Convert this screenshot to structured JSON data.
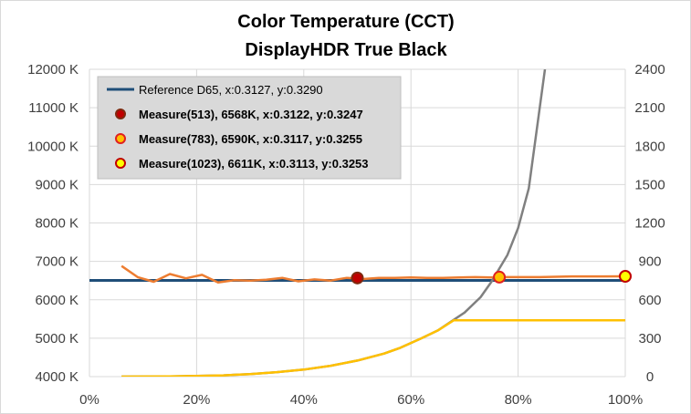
{
  "chart_data": {
    "type": "line",
    "title": "Color Temperature (CCT)",
    "subtitle": "DisplayHDR True Black",
    "xlabel": "",
    "ylabel": "",
    "x_ticks": [
      "0%",
      "20%",
      "40%",
      "60%",
      "80%",
      "100%"
    ],
    "xlim": [
      0,
      100
    ],
    "y_left_ticks": [
      "4000 K",
      "5000 K",
      "6000 K",
      "7000 K",
      "8000 K",
      "9000 K",
      "10000 K",
      "11000 K",
      "12000 K"
    ],
    "ylim_left": [
      4000,
      12000
    ],
    "y_right_ticks": [
      "0",
      "300",
      "600",
      "900",
      "1200",
      "1500",
      "1800",
      "2100",
      "2400"
    ],
    "ylim_right": [
      0,
      2400
    ],
    "grid": true,
    "legend_position": "top-left",
    "legend": [
      {
        "label": "Reference D65, x:0.3127, y:0.3290",
        "marker": "line",
        "color": "#1f4e79",
        "bold": false
      },
      {
        "label": "Measure(513), 6568K, x:0.3122, y:0.3247",
        "marker": "circle",
        "fill": "#c00000",
        "stroke": "#7f2a10",
        "bold": true
      },
      {
        "label": "Measure(783), 6590K, x:0.3117, y:0.3255",
        "marker": "circle",
        "fill": "#ffc000",
        "stroke": "#e02020",
        "bold": true
      },
      {
        "label": "Measure(1023), 6611K, x:0.3113, y:0.3253",
        "marker": "circle",
        "fill": "#ffff00",
        "stroke": "#c00000",
        "bold": true
      }
    ],
    "series": [
      {
        "name": "Reference D65, x:0.3127, y:0.3290",
        "axis": "left",
        "color": "#1f4e79",
        "x": [
          0,
          100
        ],
        "y": [
          6504,
          6504
        ]
      },
      {
        "axis": "left",
        "color": "#ed7d31",
        "x": [
          6,
          9,
          12,
          15,
          18,
          21,
          24,
          27,
          30,
          33,
          36,
          39,
          42,
          45,
          48,
          51,
          54,
          57,
          60,
          63,
          66,
          69,
          72,
          75,
          78,
          81,
          84,
          87,
          90,
          93,
          96,
          100
        ],
        "y": [
          6880,
          6590,
          6470,
          6670,
          6560,
          6650,
          6450,
          6510,
          6500,
          6520,
          6570,
          6480,
          6530,
          6500,
          6570,
          6540,
          6570,
          6570,
          6580,
          6570,
          6570,
          6580,
          6590,
          6580,
          6590,
          6590,
          6590,
          6600,
          6610,
          6610,
          6610,
          6611
        ]
      },
      {
        "axis": "right",
        "color": "#808080",
        "x": [
          6,
          10,
          15,
          20,
          25,
          30,
          35,
          40,
          45,
          50,
          55,
          58,
          62,
          65,
          70,
          73,
          75,
          78,
          80,
          82,
          85
        ],
        "y": [
          0,
          0.5,
          1.5,
          5,
          10,
          20,
          35,
          55,
          85,
          125,
          180,
          225,
          300,
          360,
          500,
          620,
          740,
          950,
          1160,
          1470,
          2400
        ]
      },
      {
        "axis": "right",
        "color": "#ffc000",
        "x": [
          6,
          10,
          15,
          20,
          25,
          30,
          35,
          40,
          45,
          50,
          55,
          58,
          62,
          65,
          68,
          70,
          75,
          80,
          85,
          90,
          95,
          100
        ],
        "y": [
          0,
          0.5,
          1.5,
          5,
          10,
          20,
          35,
          55,
          85,
          125,
          180,
          225,
          300,
          360,
          440,
          440,
          440,
          440,
          440,
          440,
          440,
          440
        ]
      },
      {
        "name": "Measure(513), 6568K, x:0.3122, y:0.3247",
        "axis": "left",
        "type": "point",
        "fill": "#c00000",
        "stroke": "#7f2a10",
        "x": [
          50
        ],
        "y": [
          6568
        ]
      },
      {
        "name": "Measure(783), 6590K, x:0.3117, y:0.3255",
        "axis": "left",
        "type": "point",
        "fill": "#ffc000",
        "stroke": "#e02020",
        "x": [
          76.5
        ],
        "y": [
          6590
        ]
      },
      {
        "name": "Measure(1023), 6611K, x:0.3113, y:0.3253",
        "axis": "left",
        "type": "point",
        "fill": "#ffff00",
        "stroke": "#c00000",
        "x": [
          100
        ],
        "y": [
          6611
        ]
      }
    ]
  }
}
